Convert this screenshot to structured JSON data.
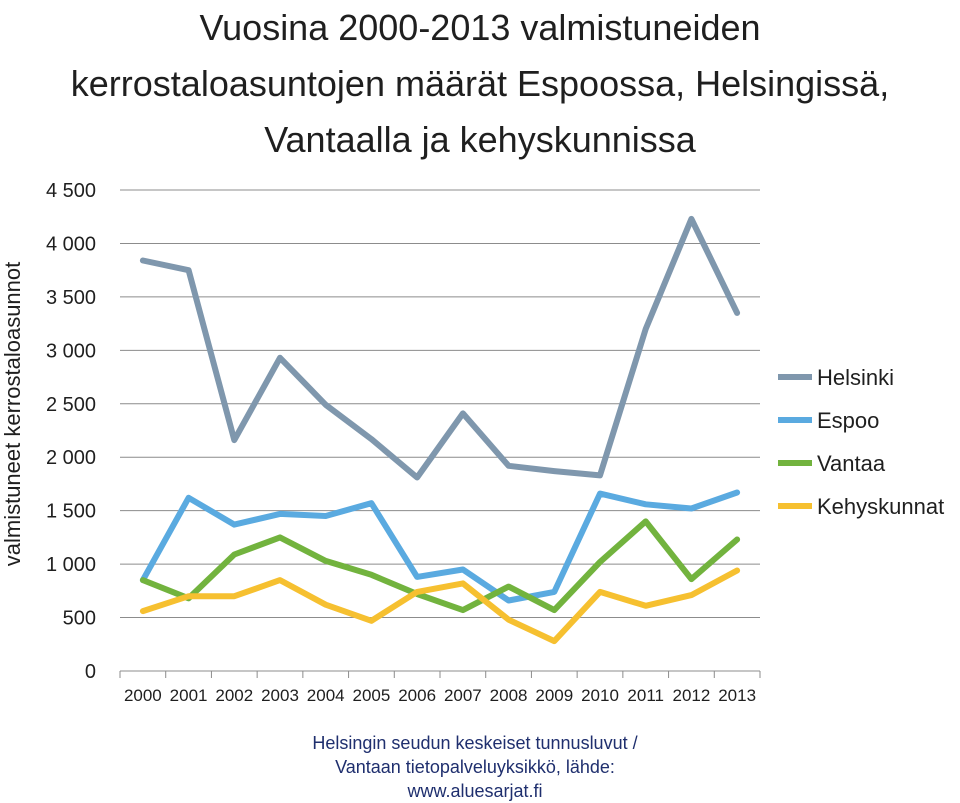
{
  "chart_data": {
    "type": "line",
    "title_lines": [
      "Vuosina 2000-2013 valmistuneiden",
      "kerrostaloasuntojen määrät Espoossa, Helsingissä,",
      "Vantaalla ja kehyskunnissa"
    ],
    "ylabel": "valmistuneet kerrostaloasunnot",
    "xlabel": "",
    "ylim": [
      0,
      4500
    ],
    "y_ticks": [
      0,
      500,
      1000,
      1500,
      2000,
      2500,
      3000,
      3500,
      4000,
      4500
    ],
    "y_tick_labels": [
      "0",
      "500",
      "1 000",
      "1 500",
      "2 000",
      "2 500",
      "3 000",
      "3 500",
      "4 000",
      "4 500"
    ],
    "categories": [
      "2000",
      "2001",
      "2002",
      "2003",
      "2004",
      "2005",
      "2006",
      "2007",
      "2008",
      "2009",
      "2010",
      "2011",
      "2012",
      "2013"
    ],
    "grid": true,
    "legend_position": "right",
    "series": [
      {
        "name": "Helsinki",
        "color": "#7f97ad",
        "values": [
          3840,
          3750,
          2160,
          2930,
          2490,
          2170,
          1810,
          2410,
          1920,
          1870,
          1830,
          3200,
          4230,
          3350
        ]
      },
      {
        "name": "Espoo",
        "color": "#5aaae0",
        "values": [
          850,
          1620,
          1370,
          1470,
          1450,
          1570,
          880,
          950,
          660,
          740,
          1660,
          1560,
          1520,
          1670
        ]
      },
      {
        "name": "Vantaa",
        "color": "#72b33e",
        "values": [
          850,
          680,
          1090,
          1250,
          1030,
          900,
          720,
          570,
          790,
          570,
          1020,
          1400,
          860,
          1230
        ]
      },
      {
        "name": "Kehyskunnat",
        "color": "#f6c030",
        "values": [
          560,
          700,
          700,
          850,
          620,
          470,
          740,
          820,
          480,
          280,
          740,
          610,
          710,
          940
        ]
      }
    ]
  },
  "source_lines": [
    "Helsingin seudun keskeiset tunnusluvut /",
    "Vantaan tietopalveluyksikkö, lähde:",
    "www.aluesarjat.fi"
  ]
}
